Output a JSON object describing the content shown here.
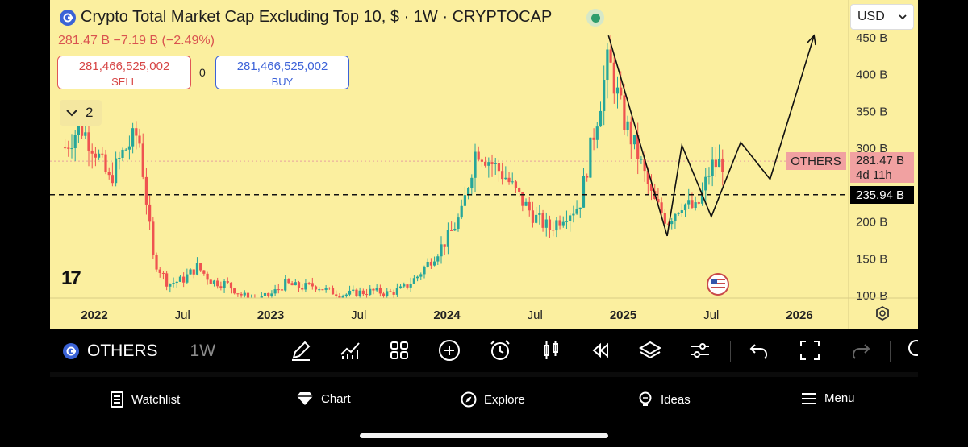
{
  "header": {
    "title": "Crypto Total Market Cap Excluding Top 10, $ · 1W · CRYPTOCAP",
    "price_line": "281.47 B  −7.19 B (−2.49%)"
  },
  "trade": {
    "sell_value": "281,466,525,002",
    "sell_label": "SELL",
    "spread": "0",
    "buy_value": "281,466,525,002",
    "buy_label": "BUY"
  },
  "indicators_toggle": {
    "count": "2"
  },
  "currency_select": {
    "selected": "USD"
  },
  "watermark": "17",
  "price_tags": {
    "symbol_label": "OTHERS",
    "current_value": "281.47 B",
    "countdown": "4d 11h",
    "line_value": "235.94 B"
  },
  "chart_data": {
    "type": "candlestick",
    "title": "Crypto Total Market Cap Excluding Top 10, $ · 1W · CRYPTOCAP",
    "y_axis_unit": "B",
    "y_ticks": [
      100,
      150,
      200,
      250,
      300,
      350,
      400,
      450
    ],
    "y_tick_labels": [
      "100 B",
      "150 B",
      "200 B",
      "",
      "300 B",
      "350 B",
      "400 B",
      "450 B"
    ],
    "ylim": [
      85,
      470
    ],
    "x_ticks": [
      {
        "label": "2022",
        "date": "2022-01"
      },
      {
        "label": "Jul",
        "date": "2022-07"
      },
      {
        "label": "2023",
        "date": "2023-01"
      },
      {
        "label": "Jul",
        "date": "2023-07"
      },
      {
        "label": "2024",
        "date": "2024-01"
      },
      {
        "label": "Jul",
        "date": "2024-07"
      },
      {
        "label": "2025",
        "date": "2025-01"
      },
      {
        "label": "Jul",
        "date": "2025-07"
      },
      {
        "label": "2026",
        "date": "2026-01"
      }
    ],
    "colors": {
      "up": "#26a69a",
      "down": "#ef5350",
      "background": "#fbef9f"
    },
    "last_value": 281.47,
    "horizontal_line": 235.94,
    "weekly_close_path": [
      [
        "2021-11",
        300
      ],
      [
        "2021-12",
        330
      ],
      [
        "2022-01",
        300
      ],
      [
        "2022-02",
        255
      ],
      [
        "2022-03",
        295
      ],
      [
        "2022-04",
        320
      ],
      [
        "2022-05",
        150
      ],
      [
        "2022-06",
        115
      ],
      [
        "2022-07",
        120
      ],
      [
        "2022-08",
        138
      ],
      [
        "2022-09",
        118
      ],
      [
        "2022-10",
        115
      ],
      [
        "2022-11",
        100
      ],
      [
        "2022-12",
        92
      ],
      [
        "2023-01",
        100
      ],
      [
        "2023-02",
        115
      ],
      [
        "2023-03",
        110
      ],
      [
        "2023-04",
        113
      ],
      [
        "2023-05",
        105
      ],
      [
        "2023-06",
        100
      ],
      [
        "2023-07",
        103
      ],
      [
        "2023-08",
        105
      ],
      [
        "2023-09",
        102
      ],
      [
        "2023-10",
        108
      ],
      [
        "2023-11",
        125
      ],
      [
        "2023-12",
        150
      ],
      [
        "2024-01",
        175
      ],
      [
        "2024-02",
        210
      ],
      [
        "2024-03",
        300
      ],
      [
        "2024-04",
        280
      ],
      [
        "2024-05",
        260
      ],
      [
        "2024-06",
        230
      ],
      [
        "2024-07",
        205
      ],
      [
        "2024-08",
        190
      ],
      [
        "2024-09",
        210
      ],
      [
        "2024-10",
        220
      ],
      [
        "2024-11",
        320
      ],
      [
        "2024-12",
        420
      ],
      [
        "2025-01",
        340
      ],
      [
        "2025-02",
        290
      ],
      [
        "2025-03",
        230
      ],
      [
        "2025-04",
        200
      ],
      [
        "2025-05",
        225
      ],
      [
        "2025-06",
        215
      ],
      [
        "2025-07",
        275
      ],
      [
        "2025-08",
        281.47
      ]
    ],
    "drawn_projection": [
      [
        "2024-12",
        452
      ],
      [
        "2025-04",
        180
      ],
      [
        "2025-05",
        303
      ],
      [
        "2025-07",
        206
      ],
      [
        "2025-09",
        307
      ],
      [
        "2025-11",
        257
      ],
      [
        "2026-02",
        452
      ]
    ]
  },
  "toolbar": {
    "symbol": "OTHERS",
    "interval": "1W",
    "tools": [
      "pencil-icon",
      "indicators-icon",
      "grid-icon",
      "plus-icon",
      "alarm-icon",
      "candles-icon",
      "replay-icon",
      "layers-icon",
      "settings-sliders-icon",
      "undo-icon",
      "fullscreen-icon",
      "redo-icon"
    ]
  },
  "bottom_nav": {
    "items": [
      {
        "label": "Watchlist",
        "icon": "watchlist-icon"
      },
      {
        "label": "Chart",
        "icon": "chart-diamond-icon"
      },
      {
        "label": "Explore",
        "icon": "compass-icon"
      },
      {
        "label": "Ideas",
        "icon": "lightbulb-icon"
      },
      {
        "label": "Menu",
        "icon": "menu-icon"
      }
    ]
  }
}
